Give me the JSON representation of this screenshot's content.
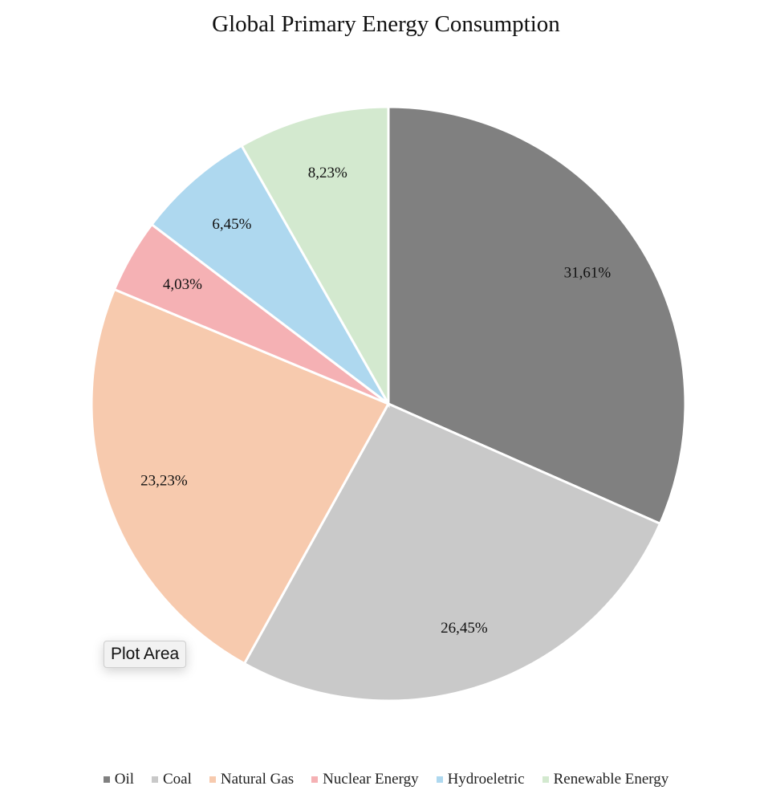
{
  "chart_data": {
    "type": "pie",
    "title": "Global Primary Energy Consumption",
    "slices": [
      {
        "name": "Oil",
        "value": 31.61,
        "label": "31,61%",
        "color": "#808080"
      },
      {
        "name": "Coal",
        "value": 26.45,
        "label": "26,45%",
        "color": "#c9c9c9"
      },
      {
        "name": "Natural Gas",
        "value": 23.23,
        "label": "23,23%",
        "color": "#f7caae"
      },
      {
        "name": "Nuclear Energy",
        "value": 4.03,
        "label": "4,03%",
        "color": "#f5b1b4"
      },
      {
        "name": "Hydroeletric",
        "value": 6.45,
        "label": "6,45%",
        "color": "#aed8ef"
      },
      {
        "name": "Renewable Energy",
        "value": 8.23,
        "label": "8,23%",
        "color": "#d3e9cf"
      }
    ],
    "legend_position": "bottom",
    "start_angle": "12 o'clock",
    "direction": "clockwise"
  },
  "tooltip": {
    "text": "Plot Area"
  }
}
